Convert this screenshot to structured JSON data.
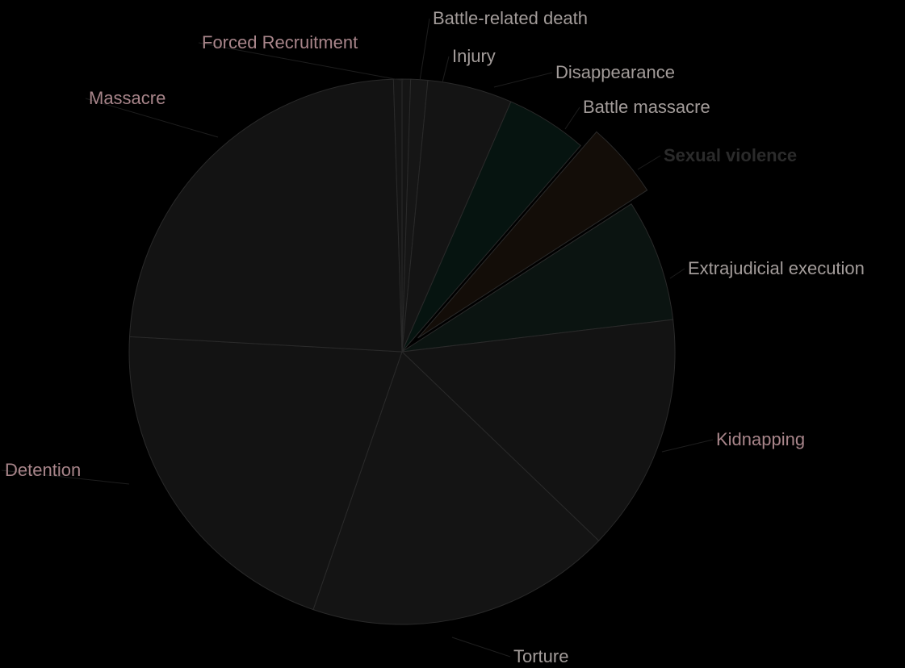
{
  "chart_data": {
    "type": "pie",
    "title": "",
    "exploded": "Sexual violence",
    "slices": [
      {
        "label": "Battle-related death",
        "value": 0.5,
        "color": "#151515",
        "label_color": "#a39c9a"
      },
      {
        "label": "Injury",
        "value": 1.0,
        "color": "#161616",
        "label_color": "#a39c9a"
      },
      {
        "label": "Disappearance",
        "value": 5.0,
        "color": "#141414",
        "label_color": "#a39c9a"
      },
      {
        "label": "Battle massacre",
        "value": 4.8,
        "color": "#061410",
        "label_color": "#a39c9a"
      },
      {
        "label": "Sexual violence",
        "value": 4.5,
        "color": "#130d08",
        "label_color": "#2b2b2b"
      },
      {
        "label": "Extrajudicial execution",
        "value": 7.2,
        "color": "#0b1411",
        "label_color": "#a39c9a"
      },
      {
        "label": "Kidnapping",
        "value": 14.0,
        "color": "#131313",
        "label_color": "#a8858a"
      },
      {
        "label": "Torture",
        "value": 18.0,
        "color": "#141414",
        "label_color": "#a39c9a"
      },
      {
        "label": "Detention",
        "value": 20.5,
        "color": "#131313",
        "label_color": "#a8858a"
      },
      {
        "label": "Massacre",
        "value": 23.5,
        "color": "#131313",
        "label_color": "#a8858a"
      },
      {
        "label": "Forced Recruitment",
        "value": 0.5,
        "color": "#151515",
        "label_color": "#a8858a"
      }
    ]
  }
}
